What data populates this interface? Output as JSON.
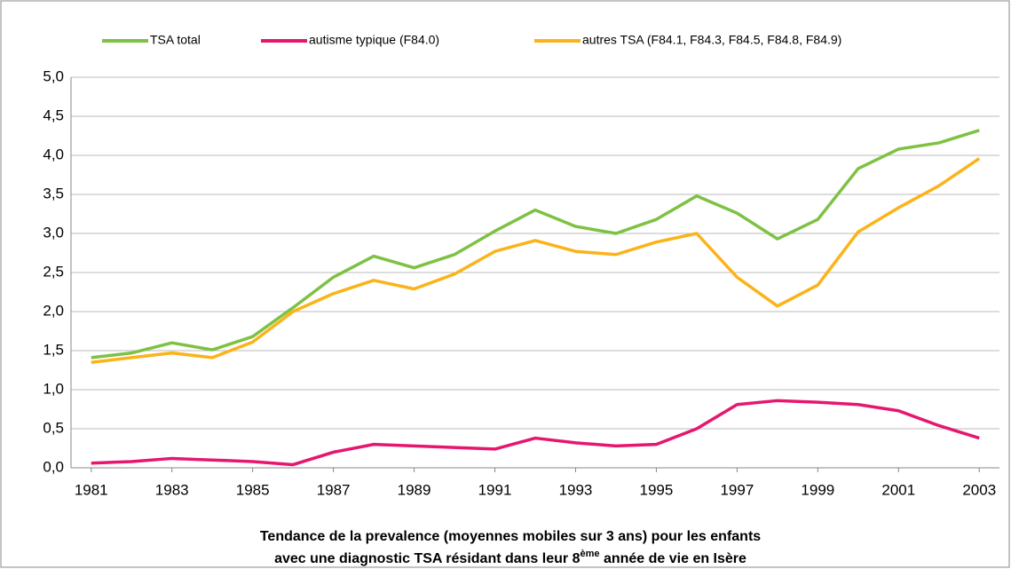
{
  "chart_data": {
    "type": "line",
    "xlabel": {
      "line1": "Tendance de la prevalence (moyennes mobiles sur 3 ans) pour les enfants",
      "line2": "avec une diagnostic  TSA résidant dans leur 8",
      "sup": "ème",
      "line2_end": " année de vie en Isère"
    },
    "x": [
      1981,
      1982,
      1983,
      1984,
      1985,
      1986,
      1987,
      1988,
      1989,
      1990,
      1991,
      1992,
      1993,
      1994,
      1995,
      1996,
      1997,
      1998,
      1999,
      2000,
      2001,
      2002,
      2003
    ],
    "xlim": [
      1980.5,
      2003.5
    ],
    "xticks": [
      1981,
      1983,
      1985,
      1987,
      1989,
      1991,
      1993,
      1995,
      1997,
      1999,
      2001,
      2003
    ],
    "ylim": [
      0,
      5
    ],
    "yticks": [
      {
        "value": 0,
        "label": "0,0"
      },
      {
        "value": 0.5,
        "label": "0,5"
      },
      {
        "value": 1,
        "label": "1,0"
      },
      {
        "value": 1.5,
        "label": "1,5"
      },
      {
        "value": 2,
        "label": "2,0"
      },
      {
        "value": 2.5,
        "label": "2,5"
      },
      {
        "value": 3,
        "label": "3,0"
      },
      {
        "value": 3.5,
        "label": "3,5"
      },
      {
        "value": 4,
        "label": "4,0"
      },
      {
        "value": 4.5,
        "label": "4,5"
      },
      {
        "value": 5,
        "label": "5,0"
      }
    ],
    "grid": true,
    "legend": "top",
    "series": [
      {
        "name": "TSA total",
        "color": "#7ec143",
        "values": [
          1.41,
          1.47,
          1.6,
          1.51,
          1.68,
          2.05,
          2.44,
          2.71,
          2.56,
          2.73,
          3.03,
          3.3,
          3.09,
          3.0,
          3.18,
          3.48,
          3.26,
          2.93,
          3.18,
          3.83,
          4.08,
          4.16,
          4.32
        ]
      },
      {
        "name": "autisme typique (F84.0)",
        "color": "#e5176e",
        "values": [
          0.06,
          0.08,
          0.12,
          0.1,
          0.08,
          0.04,
          0.2,
          0.3,
          0.28,
          0.26,
          0.24,
          0.38,
          0.32,
          0.28,
          0.3,
          0.5,
          0.81,
          0.86,
          0.84,
          0.81,
          0.73,
          0.54,
          0.38
        ]
      },
      {
        "name": "autres TSA (F84.1, F84.3, F84.5, F84.8, F84.9)",
        "color": "#fbb319",
        "values": [
          1.35,
          1.41,
          1.47,
          1.41,
          1.61,
          2.0,
          2.23,
          2.4,
          2.29,
          2.48,
          2.77,
          2.91,
          2.77,
          2.73,
          2.89,
          3.0,
          2.44,
          2.07,
          2.34,
          3.02,
          3.33,
          3.61,
          3.96
        ]
      }
    ]
  }
}
